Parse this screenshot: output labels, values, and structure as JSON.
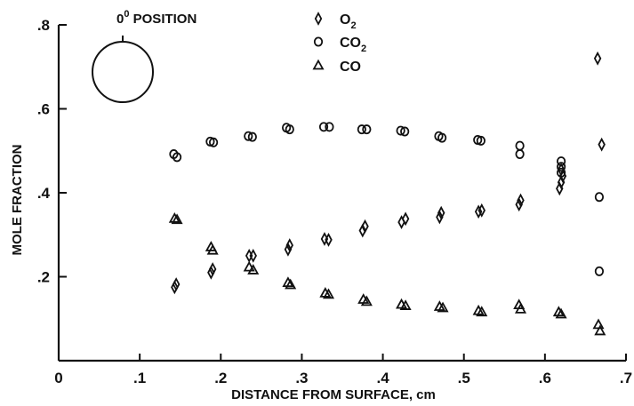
{
  "chart_data": {
    "type": "scatter",
    "xlabel": "DISTANCE FROM SURFACE, cm",
    "ylabel": "MOLE FRACTION",
    "xlim": [
      0,
      0.7
    ],
    "ylim": [
      0,
      0.8
    ],
    "x_ticks": [
      {
        "value": 0.1,
        "label": ".1"
      },
      {
        "value": 0.2,
        "label": ".2"
      },
      {
        "value": 0.3,
        "label": ".3"
      },
      {
        "value": 0.4,
        "label": ".4"
      },
      {
        "value": 0.5,
        "label": ".5"
      },
      {
        "value": 0.6,
        "label": ".6"
      },
      {
        "value": 0.7,
        "label": ".7"
      }
    ],
    "y_ticks": [
      {
        "value": 0.2,
        "label": ".2"
      },
      {
        "value": 0.4,
        "label": ".4"
      },
      {
        "value": 0.6,
        "label": ".6"
      },
      {
        "value": 0.8,
        "label": ".8"
      }
    ],
    "origin_label": "0",
    "inset": {
      "base": "0",
      "sup": "0",
      "rest": " POSITION"
    },
    "legend_position": "top-center",
    "grid": false,
    "series": [
      {
        "name": "O2",
        "label_base": "O",
        "label_sub": "2",
        "marker": "diamond",
        "points": [
          [
            0.143,
            0.175
          ],
          [
            0.145,
            0.182
          ],
          [
            0.188,
            0.21
          ],
          [
            0.19,
            0.218
          ],
          [
            0.235,
            0.25
          ],
          [
            0.24,
            0.25
          ],
          [
            0.283,
            0.265
          ],
          [
            0.285,
            0.275
          ],
          [
            0.328,
            0.29
          ],
          [
            0.333,
            0.288
          ],
          [
            0.375,
            0.31
          ],
          [
            0.378,
            0.32
          ],
          [
            0.423,
            0.33
          ],
          [
            0.428,
            0.338
          ],
          [
            0.47,
            0.342
          ],
          [
            0.472,
            0.352
          ],
          [
            0.518,
            0.355
          ],
          [
            0.522,
            0.358
          ],
          [
            0.568,
            0.372
          ],
          [
            0.57,
            0.382
          ],
          [
            0.618,
            0.41
          ],
          [
            0.62,
            0.425
          ],
          [
            0.622,
            0.44
          ],
          [
            0.62,
            0.455
          ],
          [
            0.665,
            0.72
          ],
          [
            0.67,
            0.515
          ]
        ]
      },
      {
        "name": "CO2",
        "label_base": "CO",
        "label_sub": "2",
        "marker": "circle",
        "points": [
          [
            0.142,
            0.492
          ],
          [
            0.146,
            0.485
          ],
          [
            0.187,
            0.522
          ],
          [
            0.191,
            0.52
          ],
          [
            0.234,
            0.535
          ],
          [
            0.239,
            0.533
          ],
          [
            0.281,
            0.555
          ],
          [
            0.285,
            0.551
          ],
          [
            0.327,
            0.557
          ],
          [
            0.334,
            0.557
          ],
          [
            0.374,
            0.551
          ],
          [
            0.38,
            0.551
          ],
          [
            0.422,
            0.548
          ],
          [
            0.427,
            0.546
          ],
          [
            0.469,
            0.535
          ],
          [
            0.473,
            0.531
          ],
          [
            0.517,
            0.526
          ],
          [
            0.521,
            0.524
          ],
          [
            0.569,
            0.512
          ],
          [
            0.569,
            0.492
          ],
          [
            0.62,
            0.475
          ],
          [
            0.62,
            0.462
          ],
          [
            0.62,
            0.448
          ],
          [
            0.667,
            0.39
          ],
          [
            0.667,
            0.213
          ]
        ]
      },
      {
        "name": "CO",
        "label_base": "CO",
        "label_sub": "",
        "marker": "triangle",
        "points": [
          [
            0.143,
            0.338
          ],
          [
            0.146,
            0.335
          ],
          [
            0.188,
            0.27
          ],
          [
            0.19,
            0.262
          ],
          [
            0.235,
            0.222
          ],
          [
            0.24,
            0.215
          ],
          [
            0.283,
            0.185
          ],
          [
            0.286,
            0.18
          ],
          [
            0.329,
            0.16
          ],
          [
            0.333,
            0.157
          ],
          [
            0.376,
            0.145
          ],
          [
            0.38,
            0.14
          ],
          [
            0.423,
            0.133
          ],
          [
            0.428,
            0.13
          ],
          [
            0.47,
            0.128
          ],
          [
            0.474,
            0.125
          ],
          [
            0.518,
            0.118
          ],
          [
            0.522,
            0.115
          ],
          [
            0.568,
            0.132
          ],
          [
            0.57,
            0.122
          ],
          [
            0.617,
            0.115
          ],
          [
            0.62,
            0.11
          ],
          [
            0.666,
            0.085
          ],
          [
            0.668,
            0.07
          ]
        ]
      }
    ]
  }
}
